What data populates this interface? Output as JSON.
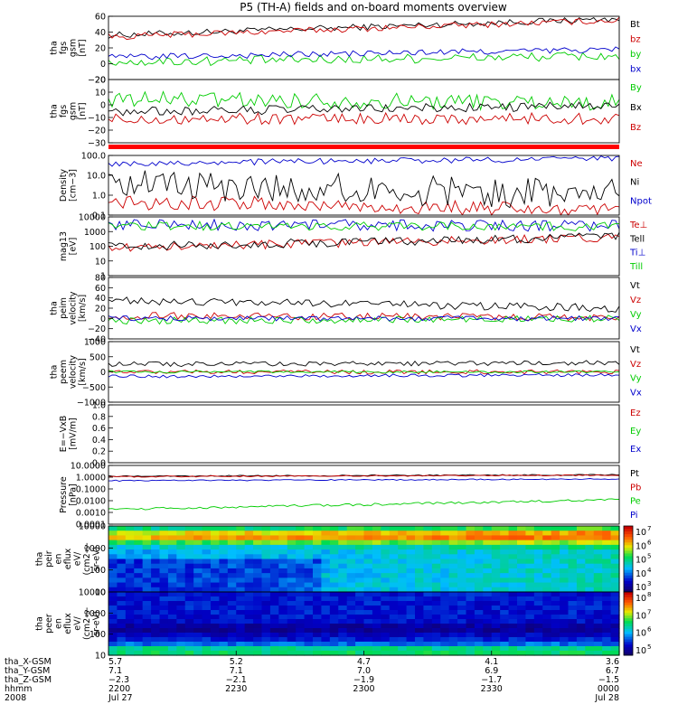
{
  "chart_data": {
    "type": "line",
    "title": "P5 (TH-A) fields and on-board moments overview",
    "panels": [
      {
        "id": "fgs-gsm-mag",
        "type": "line",
        "ylabel": [
          "tha",
          "fgs",
          "gsm",
          "[nT]"
        ],
        "ylim": [
          -20,
          60
        ],
        "yticks": [
          "60",
          "40",
          "20",
          "0",
          "−20"
        ],
        "series": [
          {
            "name": "Bt",
            "color": "#000000",
            "start": 36,
            "end": 57,
            "noise": 4
          },
          {
            "name": "bz",
            "color": "#cc0000",
            "start": 34,
            "end": 55,
            "noise": 4
          },
          {
            "name": "by",
            "color": "#00cc00",
            "start": 2,
            "end": 10,
            "noise": 6
          },
          {
            "name": "bx",
            "color": "#0000cc",
            "start": 8,
            "end": 18,
            "noise": 4
          }
        ]
      },
      {
        "id": "fgs-gsm-comp",
        "type": "line",
        "ylabel": [
          "tha",
          "fgs",
          "gsm",
          "[nT]"
        ],
        "ylim": [
          -35,
          20
        ],
        "yticks": [
          "20",
          "10",
          "0",
          "−10",
          "−20",
          "−30"
        ],
        "series": [
          {
            "name": "By",
            "color": "#00cc00",
            "start": 3,
            "end": 0,
            "noise": 7
          },
          {
            "name": "Bx",
            "color": "#000000",
            "start": -8,
            "end": -3,
            "noise": 4
          },
          {
            "name": "Bz",
            "color": "#cc0000",
            "start": -14,
            "end": -14,
            "noise": 5
          }
        ]
      },
      {
        "id": "density",
        "type": "line",
        "scale": "log",
        "ylabel": [
          "Density",
          "[cm−3]"
        ],
        "ylim": [
          0.1,
          100
        ],
        "yticks": [
          "100.0",
          "10.0",
          "1.0",
          "0.1"
        ],
        "series": [
          {
            "name": "Ne",
            "color": "#cc0000",
            "start": 0.5,
            "end": 0.15,
            "noise": 0.4
          },
          {
            "name": "Ni",
            "color": "#000000",
            "start": 3,
            "end": 1.2,
            "noise": 0.8
          },
          {
            "name": "Npot",
            "color": "#0000cc",
            "start": 40,
            "end": 70,
            "noise": 0.15
          }
        ]
      },
      {
        "id": "temperature",
        "type": "line",
        "scale": "log",
        "ylabel": [
          "mag13",
          "[eV]"
        ],
        "ylim": [
          1,
          10000
        ],
        "yticks": [
          "10000",
          "1000",
          "100",
          "10",
          "1"
        ],
        "series": [
          {
            "name": "Te⊥",
            "color": "#cc0000",
            "start": 80,
            "end": 400,
            "noise": 0.3
          },
          {
            "name": "Tell",
            "color": "#000000",
            "start": 90,
            "end": 450,
            "noise": 0.3
          },
          {
            "name": "Ti⊥",
            "color": "#0000cc",
            "start": 3000,
            "end": 2500,
            "noise": 0.4
          },
          {
            "name": "Till",
            "color": "#00cc00",
            "start": 2500,
            "end": 2200,
            "noise": 0.3
          }
        ]
      },
      {
        "id": "peim-velocity",
        "type": "line",
        "ylabel": [
          "tha",
          "peim",
          "velocity",
          "[km/s]"
        ],
        "ylim": [
          -40,
          80
        ],
        "yticks": [
          "80",
          "60",
          "40",
          "20",
          "0",
          "−20",
          "−40"
        ],
        "series": [
          {
            "name": "Vt",
            "color": "#000000",
            "start": 35,
            "end": 20,
            "noise": 8
          },
          {
            "name": "Vz",
            "color": "#cc0000",
            "start": 5,
            "end": 2,
            "noise": 7
          },
          {
            "name": "Vy",
            "color": "#00cc00",
            "start": -5,
            "end": 0,
            "noise": 7
          },
          {
            "name": "Vx",
            "color": "#0000cc",
            "start": 0,
            "end": 0,
            "noise": 5
          }
        ]
      },
      {
        "id": "peem-velocity",
        "type": "line",
        "ylabel": [
          "tha",
          "peem",
          "velocity",
          "[km/s]"
        ],
        "ylim": [
          -1000,
          1000
        ],
        "yticks": [
          "1000",
          "500",
          "0",
          "−500",
          "−1000"
        ],
        "series": [
          {
            "name": "Vt",
            "color": "#000000",
            "start": 250,
            "end": 300,
            "noise": 80
          },
          {
            "name": "Vz",
            "color": "#cc0000",
            "start": 0,
            "end": 0,
            "noise": 70
          },
          {
            "name": "Vy",
            "color": "#00cc00",
            "start": 0,
            "end": 0,
            "noise": 40
          },
          {
            "name": "Vx",
            "color": "#0000cc",
            "start": -150,
            "end": -100,
            "noise": 50
          }
        ]
      },
      {
        "id": "e-field",
        "type": "line",
        "ylabel": [
          "E=−VxB",
          "[mV/m]"
        ],
        "ylim": [
          0,
          1
        ],
        "yticks": [
          "1.0",
          "0.8",
          "0.6",
          "0.4",
          "0.2",
          "0.0"
        ],
        "series": [
          {
            "name": "Ez",
            "color": "#cc0000"
          },
          {
            "name": "Ey",
            "color": "#00cc00"
          },
          {
            "name": "Ex",
            "color": "#0000cc"
          }
        ]
      },
      {
        "id": "pressure",
        "type": "line",
        "scale": "log",
        "ylabel": [
          "Pressure",
          "[nPa]"
        ],
        "ylim": [
          0.0001,
          10
        ],
        "yticks": [
          "10.0000",
          "1.0000",
          "0.1000",
          "0.0100",
          "0.0010",
          "0.0001"
        ],
        "series": [
          {
            "name": "Pt",
            "color": "#000000",
            "start": 1.2,
            "end": 1.6,
            "noise": 0.05
          },
          {
            "name": "Pb",
            "color": "#cc0000",
            "start": 1.1,
            "end": 1.5,
            "noise": 0.05
          },
          {
            "name": "Pe",
            "color": "#00cc00",
            "start": 0.0018,
            "end": 0.012,
            "noise": 0.1
          },
          {
            "name": "Pi",
            "color": "#0000cc",
            "start": 0.5,
            "end": 0.7,
            "noise": 0.05
          }
        ]
      },
      {
        "id": "peir-efflux",
        "type": "heatmap",
        "ylabel": [
          "tha",
          "peir",
          "en",
          "eflux",
          "eV/",
          "(cm2-s-",
          "sr-eV)"
        ],
        "ylim": [
          10,
          10000
        ],
        "yticks": [
          "10000",
          "1000",
          "100",
          "10"
        ],
        "colorbar": {
          "min_exp": 3,
          "max_exp": 7,
          "labels": [
            "10",
            "10",
            "10",
            "10",
            "10"
          ],
          "exps": [
            "7",
            "6",
            "5",
            "4",
            "3"
          ]
        }
      },
      {
        "id": "peer-efflux",
        "type": "heatmap",
        "ylabel": [
          "tha",
          "peer",
          "en",
          "eflux",
          "eV/",
          "(cm2-s-",
          "sr-eV)"
        ],
        "ylim": [
          10,
          10000
        ],
        "yticks": [
          "10000",
          "1000",
          "100",
          "10"
        ],
        "colorbar": {
          "min_exp": 5,
          "max_exp": 8,
          "labels": [
            "10",
            "10",
            "10",
            "10"
          ],
          "exps": [
            "8",
            "7",
            "6",
            "5"
          ]
        }
      }
    ],
    "x_axis": {
      "row_labels": [
        "tha_X-GSM",
        "tha_Y-GSM",
        "tha_Z-GSM",
        "hhmm",
        "2008"
      ],
      "ticks": [
        {
          "rows": [
            "5.7",
            "7.1",
            "−2.3",
            "2200",
            "Jul 27"
          ]
        },
        {
          "rows": [
            "5.2",
            "7.1",
            "−2.1",
            "2230",
            ""
          ]
        },
        {
          "rows": [
            "4.7",
            "7.0",
            "−1.9",
            "2300",
            ""
          ]
        },
        {
          "rows": [
            "4.1",
            "6.9",
            "−1.7",
            "2330",
            ""
          ]
        },
        {
          "rows": [
            "3.6",
            "6.7",
            "−1.5",
            "0000",
            "Jul 28"
          ]
        }
      ]
    }
  }
}
